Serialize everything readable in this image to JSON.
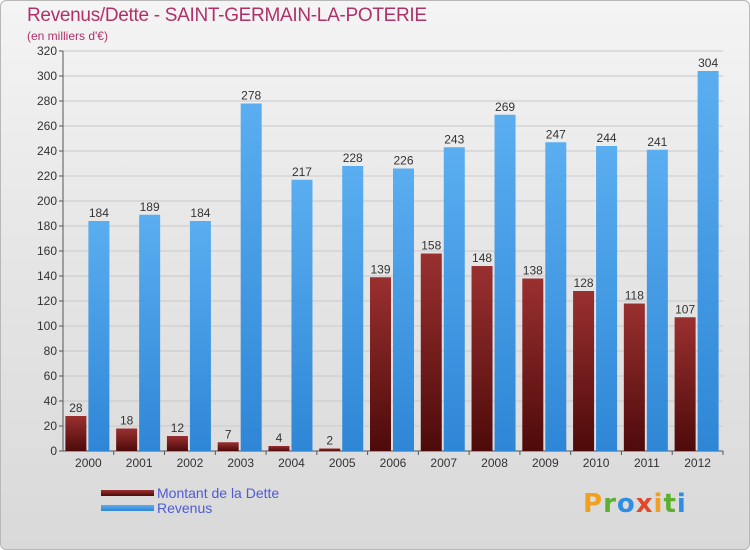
{
  "title": "Revenus/Dette - SAINT-GERMAIN-LA-POTERIE",
  "subtitle": "(en milliers d'€)",
  "colors": {
    "debt": "#7a1a1a",
    "revenue": "#3d97e0",
    "title": "#b0306a",
    "legend_text": "#4f5bd5"
  },
  "chart_data": {
    "type": "bar",
    "categories": [
      "2000",
      "2001",
      "2002",
      "2003",
      "2004",
      "2005",
      "2006",
      "2007",
      "2008",
      "2009",
      "2010",
      "2011",
      "2012"
    ],
    "series": [
      {
        "name": "Montant de la Dette",
        "values": [
          28,
          18,
          12,
          7,
          4,
          2,
          139,
          158,
          148,
          138,
          128,
          118,
          107
        ],
        "color": "#7a1a1a"
      },
      {
        "name": "Revenus",
        "values": [
          184,
          189,
          184,
          278,
          217,
          228,
          226,
          243,
          269,
          247,
          244,
          241,
          304
        ],
        "color": "#3d97e0"
      }
    ],
    "ylim": [
      0,
      320
    ],
    "yticks": [
      0,
      20,
      40,
      60,
      80,
      100,
      120,
      140,
      160,
      180,
      200,
      220,
      240,
      260,
      280,
      300,
      320
    ],
    "grid": true,
    "legend_position": "bottom-left"
  },
  "logo": {
    "letters": [
      "P",
      "r",
      "o",
      "x",
      "i",
      "t",
      "i"
    ],
    "colors": [
      "#f0a020",
      "#5cb030",
      "#2f8ee0",
      "#e04a2a",
      "#f0a020",
      "#5cb030",
      "#2f8ee0"
    ]
  }
}
